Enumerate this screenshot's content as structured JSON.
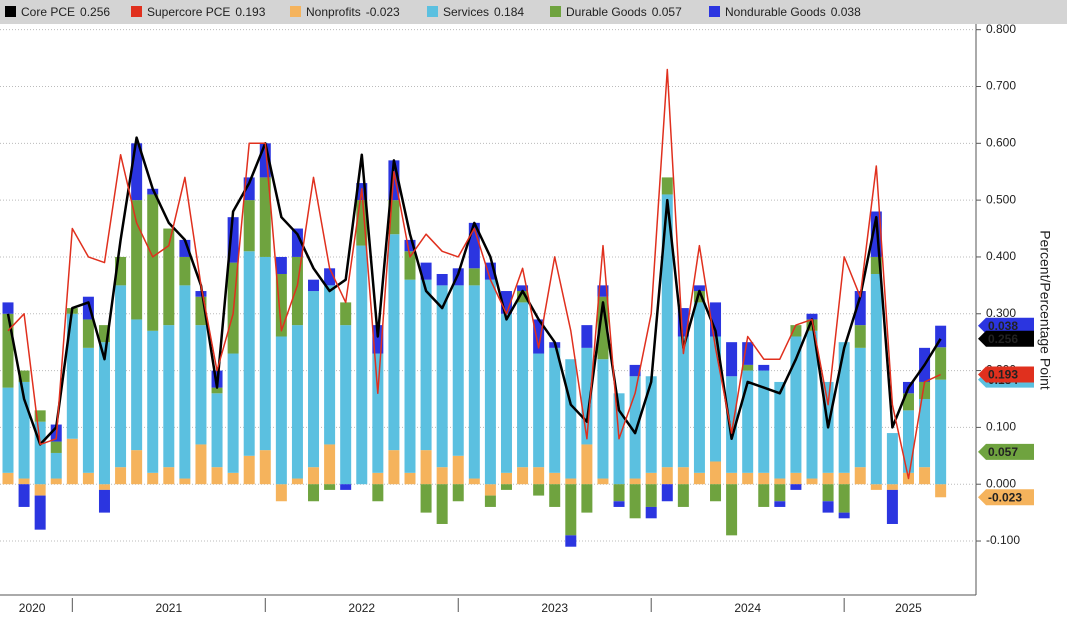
{
  "chart_data": {
    "type": "bar",
    "y_axis_label": "Percent/Percentage Point",
    "categories": [
      null,
      null,
      null,
      null,
      null,
      null,
      null,
      null,
      null,
      null,
      null,
      null,
      null,
      null,
      null,
      null,
      null,
      null,
      null,
      null,
      null,
      null,
      null,
      null,
      null,
      null,
      null,
      null,
      null,
      null,
      null,
      null,
      null,
      null,
      null,
      null,
      null,
      null,
      null,
      null,
      null,
      null,
      null,
      null,
      null,
      null,
      null,
      null,
      null,
      null,
      null,
      null,
      null,
      null,
      null,
      null,
      null,
      null,
      null
    ],
    "xticks": [
      4,
      16,
      28,
      40,
      52
    ],
    "year_labels": [
      {
        "value": 1.5,
        "label": "2020"
      },
      {
        "value": 10,
        "label": "2021"
      },
      {
        "value": 22,
        "label": "2022"
      },
      {
        "value": 34,
        "label": "2023"
      },
      {
        "value": 46,
        "label": "2024"
      },
      {
        "value": 56,
        "label": "2025"
      }
    ],
    "ylim": [
      -0.195,
      0.81
    ],
    "yticks": [
      {
        "value": 0.8,
        "label": "0.800"
      },
      {
        "value": 0.7,
        "label": "0.700"
      },
      {
        "value": 0.6,
        "label": "0.600"
      },
      {
        "value": 0.5,
        "label": "0.500"
      },
      {
        "value": 0.4,
        "label": "0.400"
      },
      {
        "value": 0.3,
        "label": "0.300"
      },
      {
        "value": 0.2,
        "label": "0.200"
      },
      {
        "value": 0.1,
        "label": "0.100"
      },
      {
        "value": 0,
        "label": "0.000"
      },
      {
        "value": -0.1,
        "label": "-0.100"
      }
    ],
    "grid": true,
    "series": [
      {
        "name": "Core PCE",
        "type": "line",
        "color": "#000000",
        "values": [
          0.3,
          0.15,
          0.07,
          0.1,
          0.31,
          0.32,
          0.22,
          0.43,
          0.61,
          0.52,
          0.46,
          0.43,
          0.35,
          0.17,
          0.48,
          0.53,
          0.6,
          0.47,
          0.44,
          0.38,
          0.34,
          0.36,
          0.58,
          0.26,
          0.57,
          0.44,
          0.34,
          0.31,
          0.37,
          0.46,
          0.4,
          0.29,
          0.34,
          0.29,
          0.25,
          0.14,
          0.11,
          0.32,
          0.13,
          0.09,
          0.18,
          0.5,
          0.24,
          0.34,
          0.27,
          0.08,
          0.18,
          0.17,
          0.16,
          0.22,
          0.29,
          0.1,
          0.24,
          0.33,
          0.47,
          0.1,
          0.17,
          0.21,
          0.256
        ]
      },
      {
        "name": "Supercore PCE",
        "type": "line",
        "color": "#e0301e",
        "values": [
          0.27,
          0.3,
          0.07,
          0.08,
          0.45,
          0.4,
          0.39,
          0.58,
          0.46,
          0.4,
          0.42,
          0.54,
          0.35,
          0.2,
          0.3,
          0.6,
          0.6,
          0.27,
          0.35,
          0.54,
          0.38,
          0.32,
          0.52,
          0.16,
          0.55,
          0.4,
          0.44,
          0.41,
          0.4,
          0.45,
          0.36,
          0.3,
          0.38,
          0.24,
          0.4,
          0.27,
          0.08,
          0.42,
          0.08,
          0.16,
          0.3,
          0.73,
          0.23,
          0.42,
          0.24,
          0.09,
          0.26,
          0.22,
          0.22,
          0.28,
          0.29,
          0.14,
          0.4,
          0.33,
          0.56,
          0.14,
          0.01,
          0.18,
          0.193
        ]
      },
      {
        "name": "Nonprofits",
        "type": "bar",
        "color": "#f5b35c",
        "values": [
          0.02,
          0.01,
          -0.02,
          0.01,
          0.08,
          0.02,
          -0.01,
          0.03,
          0.06,
          0.02,
          0.03,
          0.01,
          0.07,
          0.03,
          0.02,
          0.05,
          0.06,
          -0.03,
          0.01,
          0.03,
          0.07,
          0.0,
          0.0,
          0.02,
          0.06,
          0.02,
          0.06,
          0.03,
          0.05,
          0.01,
          -0.02,
          0.02,
          0.03,
          0.03,
          0.02,
          0.01,
          0.07,
          0.01,
          0.0,
          0.01,
          0.02,
          0.03,
          0.03,
          0.02,
          0.04,
          0.02,
          0.02,
          0.02,
          0.01,
          0.02,
          0.01,
          0.02,
          0.02,
          0.03,
          -0.01,
          -0.01,
          0.02,
          0.03,
          -0.023
        ]
      },
      {
        "name": "Services",
        "type": "bar",
        "color": "#5bc0e0",
        "values": [
          0.15,
          0.17,
          0.11,
          0.045,
          0.22,
          0.22,
          0.25,
          0.32,
          0.23,
          0.25,
          0.25,
          0.34,
          0.21,
          0.13,
          0.21,
          0.36,
          0.34,
          0.26,
          0.27,
          0.31,
          0.28,
          0.28,
          0.42,
          0.21,
          0.38,
          0.34,
          0.3,
          0.32,
          0.3,
          0.34,
          0.36,
          0.28,
          0.29,
          0.2,
          0.22,
          0.21,
          0.17,
          0.21,
          0.16,
          0.18,
          0.17,
          0.48,
          0.23,
          0.3,
          0.22,
          0.17,
          0.18,
          0.18,
          0.17,
          0.24,
          0.26,
          0.16,
          0.23,
          0.21,
          0.37,
          0.09,
          0.11,
          0.12,
          0.184
        ]
      },
      {
        "name": "Durable Goods",
        "type": "bar",
        "color": "#6fa33f",
        "values": [
          0.13,
          0.02,
          0.02,
          0.02,
          0.01,
          0.05,
          0.03,
          0.05,
          0.21,
          0.24,
          0.17,
          0.05,
          0.05,
          0.01,
          0.16,
          0.09,
          0.14,
          0.11,
          0.12,
          -0.03,
          -0.01,
          0.04,
          0.08,
          -0.03,
          0.06,
          0.05,
          -0.05,
          -0.07,
          -0.03,
          0.03,
          -0.02,
          -0.01,
          0.02,
          -0.02,
          -0.04,
          -0.09,
          -0.05,
          0.11,
          -0.03,
          -0.06,
          -0.04,
          0.03,
          -0.04,
          0.02,
          -0.03,
          -0.09,
          0.01,
          -0.04,
          -0.03,
          0.02,
          0.02,
          -0.03,
          -0.05,
          0.04,
          0.03,
          0.0,
          0.03,
          0.03,
          0.057
        ]
      },
      {
        "name": "Nondurable Goods",
        "type": "bar",
        "color": "#2b35e0",
        "values": [
          0.02,
          -0.04,
          -0.06,
          0.03,
          0.0,
          0.04,
          -0.04,
          0.0,
          0.1,
          0.01,
          0.0,
          0.03,
          0.01,
          0.03,
          0.08,
          0.04,
          0.06,
          0.03,
          0.05,
          0.02,
          0.03,
          -0.01,
          0.03,
          0.05,
          0.07,
          0.02,
          0.03,
          0.02,
          0.03,
          0.08,
          0.03,
          0.04,
          0.01,
          0.06,
          0.01,
          -0.02,
          0.04,
          0.02,
          -0.01,
          0.02,
          -0.02,
          -0.03,
          0.05,
          0.01,
          0.06,
          0.06,
          0.04,
          0.01,
          -0.01,
          -0.01,
          0.01,
          -0.02,
          -0.01,
          0.06,
          0.08,
          -0.06,
          0.02,
          0.06,
          0.038
        ]
      }
    ]
  }
}
